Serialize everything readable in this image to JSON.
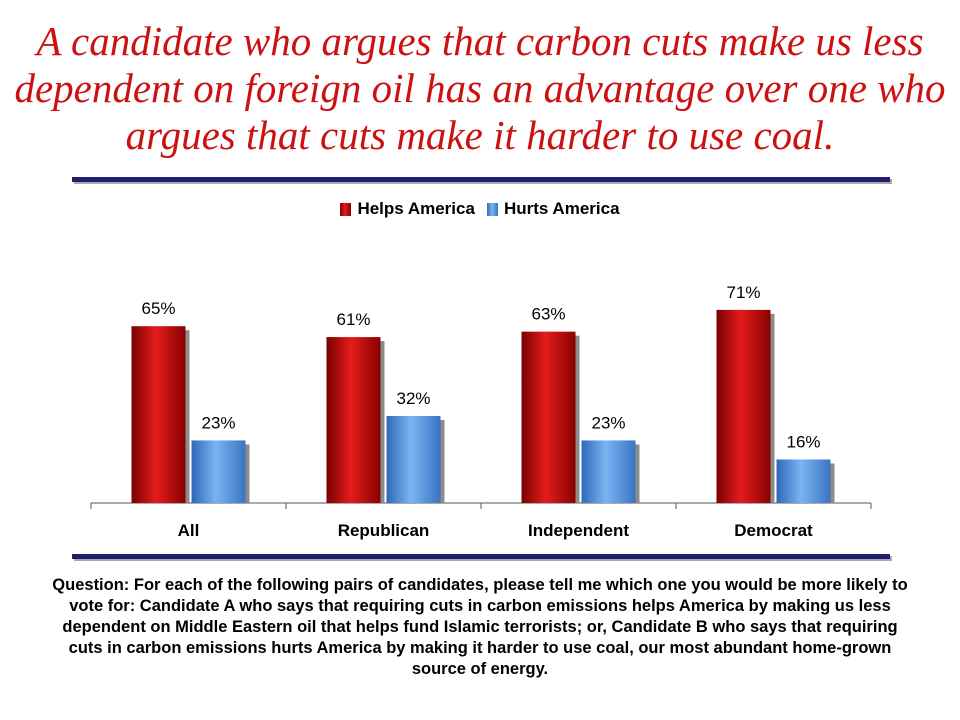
{
  "title": "A candidate who argues that carbon cuts make us less dependent on foreign oil has an advantage over one who argues that cuts make it harder to use coal.",
  "question": "Question: For each of the following pairs of candidates, please tell me which one you would be more likely to vote for: Candidate A who says that requiring cuts in carbon emissions helps America by making us less dependent on Middle Eastern oil that helps fund Islamic terrorists; or, Candidate B who says that requiring cuts in carbon emissions hurts America by making it harder to use coal, our most abundant home-grown source of energy.",
  "colors": {
    "title": "#cc1111",
    "helps": "#d61a1a",
    "hurts": "#5b9be6",
    "rule": "#1f1f6b"
  },
  "chart_data": {
    "type": "bar",
    "categories": [
      "All",
      "Republican",
      "Independent",
      "Democrat"
    ],
    "series": [
      {
        "name": "Helps America",
        "values": [
          65,
          61,
          63,
          71
        ],
        "labels": [
          "65%",
          "61%",
          "63%",
          "71%"
        ]
      },
      {
        "name": "Hurts America",
        "values": [
          23,
          32,
          23,
          16
        ],
        "labels": [
          "23%",
          "32%",
          "23%",
          "16%"
        ]
      }
    ],
    "ylim": [
      0,
      100
    ],
    "legend": "top-center",
    "grid": false
  }
}
